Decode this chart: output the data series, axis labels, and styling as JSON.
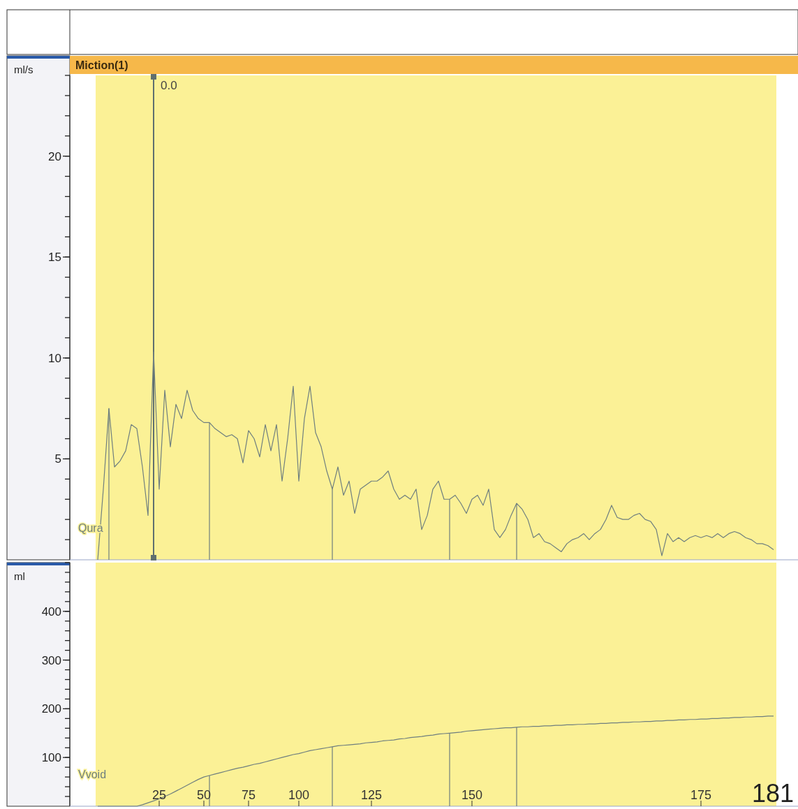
{
  "chart_data": [
    {
      "type": "line",
      "title": "Miction(1)",
      "ylabel": "ml/s",
      "tick_labels": "y",
      "grid": false,
      "marker": "none",
      "annotations": [
        "0.0"
      ],
      "categories": [
        null,
        null,
        null,
        null,
        null,
        null,
        null,
        null,
        null,
        null,
        null,
        null,
        null,
        null,
        null,
        null,
        null,
        null,
        null,
        null,
        null,
        null,
        null,
        null,
        null,
        null,
        null,
        null,
        null,
        null,
        null,
        null,
        null,
        null,
        null,
        null,
        null,
        null,
        null,
        null,
        null,
        null,
        null,
        null,
        null,
        null,
        null,
        null,
        null,
        null,
        null,
        null,
        null,
        null,
        null,
        null,
        null,
        null,
        null,
        null,
        null,
        null,
        null,
        null,
        null,
        null,
        null,
        null,
        null,
        null,
        null,
        null,
        null,
        null,
        null,
        null,
        null,
        null,
        null,
        null,
        null,
        null,
        null,
        null,
        null,
        null,
        null,
        null,
        null,
        null,
        null,
        null,
        null,
        null,
        null,
        null,
        null,
        null,
        null,
        null,
        null,
        null,
        null,
        null,
        null,
        null,
        null,
        null,
        null,
        null,
        null,
        null,
        null,
        null,
        null,
        null,
        null,
        null,
        null,
        null,
        null,
        null
      ],
      "ylim": [
        0,
        24
      ],
      "yticks": [
        5,
        10,
        15,
        20
      ],
      "series": [
        {
          "name": "Qura",
          "color": "#6f7f7f",
          "values": [
            0,
            3.5,
            7.5,
            4.6,
            4.9,
            5.4,
            6.7,
            6.5,
            4.6,
            2.2,
            10.3,
            3.5,
            8.4,
            5.6,
            7.7,
            7.0,
            8.4,
            7.4,
            7.0,
            6.8,
            6.8,
            6.5,
            6.3,
            6.1,
            6.2,
            6.0,
            4.8,
            6.4,
            6.0,
            5.1,
            6.7,
            5.4,
            6.7,
            3.9,
            6.0,
            8.6,
            3.9,
            7.0,
            8.6,
            6.3,
            5.6,
            4.4,
            3.5,
            4.6,
            3.2,
            3.9,
            2.3,
            3.5,
            3.7,
            3.9,
            3.9,
            4.1,
            4.4,
            3.5,
            3.0,
            3.2,
            3.0,
            3.5,
            1.5,
            2.2,
            3.5,
            3.9,
            3.0,
            3.0,
            3.2,
            2.8,
            2.3,
            3.0,
            3.2,
            2.7,
            3.5,
            1.5,
            1.1,
            1.5,
            2.2,
            2.8,
            2.5,
            2.0,
            1.1,
            1.3,
            0.9,
            0.8,
            0.6,
            0.4,
            0.8,
            1.0,
            1.1,
            1.3,
            1.0,
            1.3,
            1.5,
            2.0,
            2.7,
            2.1,
            2.0,
            2.0,
            2.2,
            2.3,
            2.0,
            1.9,
            1.5,
            0.2,
            1.3,
            0.9,
            1.1,
            0.9,
            1.1,
            1.2,
            1.1,
            1.2,
            1.1,
            1.3,
            1.1,
            1.3,
            1.4,
            1.3,
            1.1,
            1.0,
            0.8,
            0.8,
            0.7,
            0.5
          ]
        }
      ]
    },
    {
      "type": "line",
      "ylabel": "ml",
      "grid": false,
      "marker": "none",
      "categories": [
        null,
        null,
        null,
        null,
        null,
        null,
        null,
        null,
        null,
        null,
        null,
        "25",
        null,
        null,
        null,
        null,
        null,
        null,
        null,
        "50",
        null,
        null,
        null,
        null,
        null,
        null,
        null,
        "75",
        null,
        null,
        null,
        null,
        null,
        null,
        null,
        null,
        "100",
        null,
        null,
        null,
        null,
        null,
        null,
        null,
        null,
        null,
        null,
        null,
        null,
        "125",
        null,
        null,
        null,
        null,
        null,
        null,
        null,
        null,
        null,
        null,
        null,
        null,
        null,
        null,
        null,
        null,
        null,
        "150",
        null,
        null,
        null,
        null,
        null,
        null,
        null,
        null,
        null,
        null,
        null,
        null,
        null,
        null,
        null,
        null,
        null,
        null,
        null,
        null,
        null,
        null,
        null,
        null,
        null,
        null,
        null,
        null,
        null,
        null,
        null,
        null,
        null,
        null,
        null,
        null,
        null,
        null,
        null,
        null,
        "175",
        null,
        null,
        null,
        null,
        null,
        null,
        null,
        null,
        null,
        null,
        null,
        null,
        null
      ],
      "ylim": [
        0,
        500
      ],
      "yticks": [
        100,
        200,
        300,
        400
      ],
      "annotations": [
        "181"
      ],
      "series": [
        {
          "name": "Vvoid",
          "color": "#6f7f7f",
          "values": [
            0,
            0,
            0,
            0,
            0,
            0,
            0,
            0,
            3,
            7,
            11,
            15,
            20,
            25,
            31,
            37,
            43,
            49,
            55,
            60,
            63,
            66,
            69,
            72,
            75,
            78,
            80,
            83,
            86,
            88,
            91,
            94,
            97,
            100,
            103,
            106,
            108,
            111,
            114,
            116,
            118,
            120,
            122,
            124,
            125,
            126,
            127,
            128,
            130,
            131,
            132,
            134,
            135,
            136,
            138,
            139,
            141,
            142,
            143,
            145,
            146,
            148,
            149,
            150,
            151,
            152,
            154,
            155,
            156,
            157,
            158,
            159,
            160,
            161,
            161,
            162,
            163,
            163,
            164,
            164,
            165,
            165,
            166,
            166,
            167,
            167,
            168,
            168,
            169,
            169,
            170,
            170,
            171,
            171,
            172,
            172,
            173,
            173,
            174,
            174,
            175,
            175,
            176,
            176,
            177,
            177,
            178,
            178,
            179,
            179,
            180,
            180,
            181,
            181,
            182,
            182,
            183,
            183,
            184,
            184,
            185,
            185
          ]
        }
      ]
    }
  ]
}
